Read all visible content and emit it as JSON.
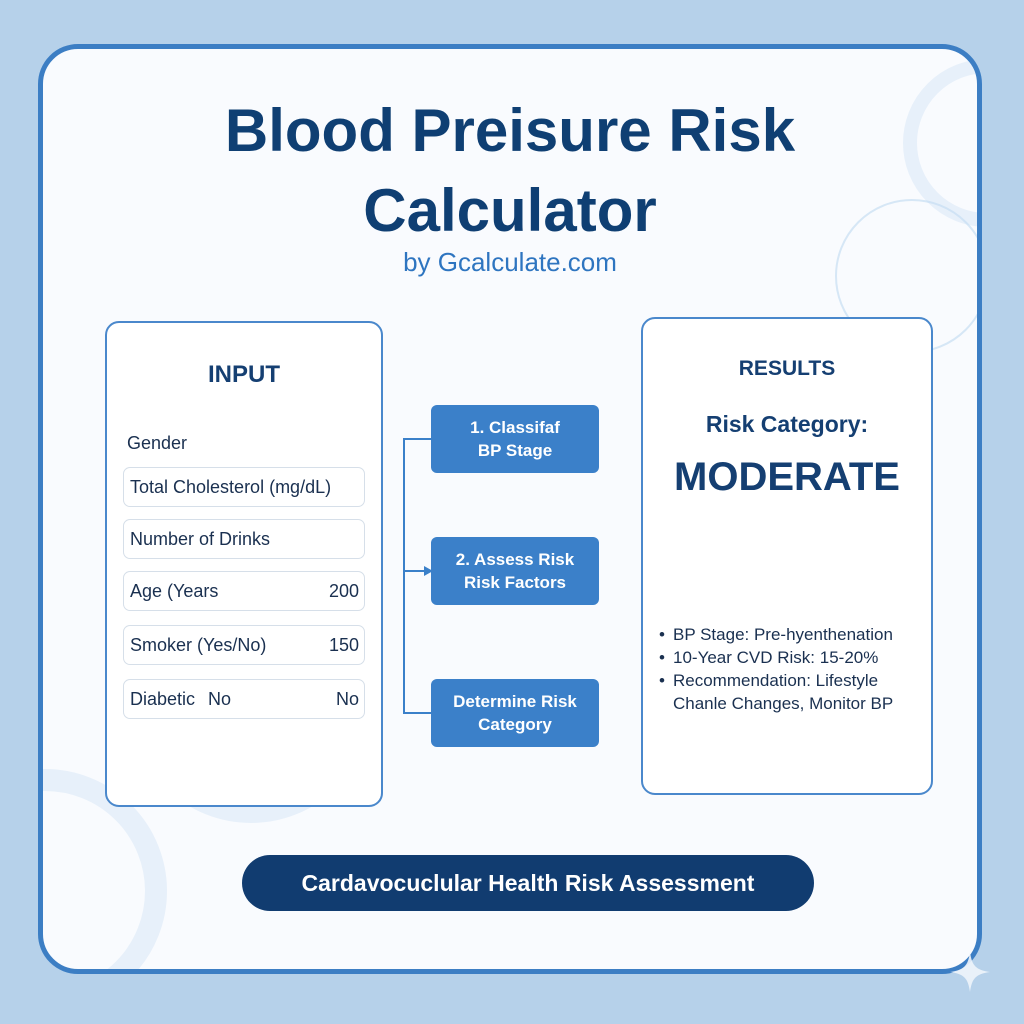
{
  "header": {
    "title_line1": "Blood Preisure Risk",
    "title_line2": "Calculator",
    "subtitle": "by Gcalculate.com"
  },
  "input_panel": {
    "heading": "INPUT",
    "gender_label": "Gender",
    "fields": [
      {
        "label": "Total Cholesterol (mg/dL)",
        "value": ""
      },
      {
        "label": "Number of Drinks",
        "value": ""
      },
      {
        "label": "Age (Years",
        "value": "200"
      },
      {
        "label": "Smoker (Yes/No)",
        "value": "150"
      },
      {
        "label": "Diabetic",
        "inline_value": "No",
        "value": "No"
      }
    ]
  },
  "steps": [
    {
      "line1": "1. Classifaf",
      "line2": "BP Stage"
    },
    {
      "line1": "2. Assess Risk",
      "line2": "Risk Factors"
    },
    {
      "line1": "Determine Risk",
      "line2": "Category"
    }
  ],
  "results_panel": {
    "heading": "RESULTS",
    "risk_label": "Risk Category:",
    "risk_value": "MODERATE",
    "items": [
      {
        "bullet": "•",
        "line1": "BP Stage: Pre-hyenthenation"
      },
      {
        "bullet": "•",
        "line1": "10-Year CVD Risk: 15-20%"
      },
      {
        "bullet": "•",
        "line1": "Recommendation: Lifestyle",
        "line2": "Chanle Changes, Monitor BP"
      }
    ]
  },
  "footer": {
    "label": "Cardavocuclular Health Risk Assessment"
  },
  "colors": {
    "background": "#b6d1ea",
    "card_border": "#3c7ec4",
    "title": "#0f3f73",
    "accent": "#2e75c0",
    "step_fill": "#3b80c9",
    "footer_fill": "#113c70"
  },
  "icons": [
    "sparkle-icon"
  ]
}
